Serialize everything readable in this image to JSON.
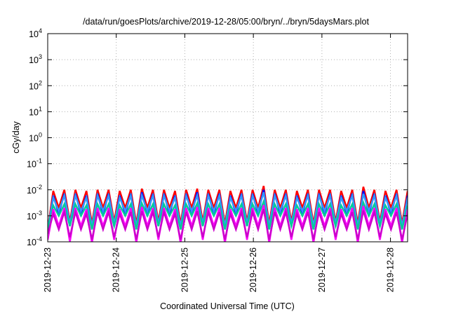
{
  "chart_data": {
    "type": "line",
    "title": "/data/run/goesPlots/archive/2019-12-28/05:00/bryn/../bryn/5daysMars.plot",
    "xlabel": "Coordinated Universal Time (UTC)",
    "ylabel": "cGy/day",
    "y_scale": "log",
    "ylim": [
      0.0001,
      10000
    ],
    "xlim": [
      "2019-12-23T00:00",
      "2019-12-28T06:00"
    ],
    "y_ticks": [
      {
        "base": "10",
        "exp": "-4"
      },
      {
        "base": "10",
        "exp": "-3"
      },
      {
        "base": "10",
        "exp": "-2"
      },
      {
        "base": "10",
        "exp": "-1"
      },
      {
        "base": "10",
        "exp": "0"
      },
      {
        "base": "10",
        "exp": "1"
      },
      {
        "base": "10",
        "exp": "2"
      },
      {
        "base": "10",
        "exp": "3"
      },
      {
        "base": "10",
        "exp": "4"
      }
    ],
    "x_ticks": [
      "2019-12-23",
      "2019-12-24",
      "2019-12-25",
      "2019-12-26",
      "2019-12-27",
      "2019-12-28"
    ],
    "grid": true,
    "series": [
      {
        "color": "#ff0000",
        "values": [
          0.0003,
          0.009,
          0.002,
          0.01,
          0.0006,
          0.01,
          0.002,
          0.009,
          0.0005,
          0.01,
          0.002,
          0.01,
          0.0006,
          0.009,
          0.002,
          0.01,
          0.0005,
          0.011,
          0.002,
          0.01,
          0.0006,
          0.01,
          0.002,
          0.009,
          0.0005,
          0.01,
          0.002,
          0.011,
          0.0006,
          0.01,
          0.002,
          0.01,
          0.0005,
          0.009,
          0.002,
          0.01,
          0.0006,
          0.01,
          0.002,
          0.014,
          0.0005,
          0.01,
          0.002,
          0.01,
          0.0006,
          0.009,
          0.002,
          0.01,
          0.0005,
          0.01,
          0.002,
          0.01,
          0.0006,
          0.009,
          0.002,
          0.01,
          0.0005,
          0.013,
          0.002,
          0.01,
          0.0006,
          0.009,
          0.002,
          0.01,
          0.0005,
          0.009
        ]
      },
      {
        "color": "#0000ff",
        "values": [
          0.0002,
          0.006,
          0.0012,
          0.007,
          0.0004,
          0.007,
          0.0012,
          0.006,
          0.0003,
          0.007,
          0.0012,
          0.007,
          0.0004,
          0.006,
          0.0012,
          0.007,
          0.0003,
          0.008,
          0.0012,
          0.007,
          0.0004,
          0.007,
          0.0012,
          0.006,
          0.0003,
          0.007,
          0.0012,
          0.008,
          0.0004,
          0.007,
          0.0012,
          0.007,
          0.0003,
          0.006,
          0.0012,
          0.007,
          0.0004,
          0.007,
          0.0012,
          0.01,
          0.0003,
          0.007,
          0.0012,
          0.007,
          0.0004,
          0.006,
          0.0012,
          0.007,
          0.0003,
          0.007,
          0.0012,
          0.007,
          0.0004,
          0.006,
          0.0012,
          0.007,
          0.0003,
          0.009,
          0.0012,
          0.007,
          0.0004,
          0.006,
          0.0012,
          0.007,
          0.0003,
          0.006
        ]
      },
      {
        "color": "#3399ff",
        "values": [
          0.0003,
          0.005,
          0.0015,
          0.006,
          0.0005,
          0.006,
          0.0015,
          0.005,
          0.0004,
          0.006,
          0.0015,
          0.006,
          0.0005,
          0.005,
          0.0015,
          0.006,
          0.0004,
          0.006,
          0.0015,
          0.006,
          0.0005,
          0.006,
          0.0015,
          0.005,
          0.0004,
          0.006,
          0.0015,
          0.006,
          0.0005,
          0.006,
          0.0015,
          0.006,
          0.0004,
          0.005,
          0.0015,
          0.006,
          0.0005,
          0.006,
          0.0015,
          0.008,
          0.0004,
          0.006,
          0.0015,
          0.006,
          0.0005,
          0.005,
          0.0015,
          0.006,
          0.0004,
          0.006,
          0.0015,
          0.006,
          0.0005,
          0.005,
          0.0015,
          0.006,
          0.0004,
          0.007,
          0.0015,
          0.006,
          0.0005,
          0.005,
          0.0015,
          0.006,
          0.0004,
          0.005
        ]
      },
      {
        "color": "#00cc99",
        "values": [
          0.0003,
          0.0025,
          0.001,
          0.0028,
          0.0004,
          0.0028,
          0.001,
          0.0025,
          0.0003,
          0.0028,
          0.001,
          0.0028,
          0.0004,
          0.0025,
          0.001,
          0.0028,
          0.0003,
          0.003,
          0.001,
          0.0028,
          0.0004,
          0.0028,
          0.001,
          0.0025,
          0.0003,
          0.0028,
          0.001,
          0.003,
          0.0004,
          0.0028,
          0.001,
          0.0028,
          0.0003,
          0.0025,
          0.001,
          0.0028,
          0.0004,
          0.0028,
          0.001,
          0.0035,
          0.0003,
          0.0028,
          0.001,
          0.0028,
          0.0004,
          0.0025,
          0.001,
          0.0028,
          0.0003,
          0.0028,
          0.001,
          0.0028,
          0.0004,
          0.0025,
          0.001,
          0.0028,
          0.0003,
          0.0032,
          0.001,
          0.0028,
          0.0004,
          0.0025,
          0.001,
          0.0028,
          0.0003,
          0.0025
        ]
      },
      {
        "color": "#ff00ff",
        "values": [
          0.00012,
          0.0018,
          0.0004,
          0.002,
          0.0001,
          0.002,
          0.0004,
          0.0018,
          9e-05,
          0.002,
          0.0004,
          0.002,
          0.00012,
          0.0018,
          0.0004,
          0.002,
          9e-05,
          0.0022,
          0.0004,
          0.002,
          0.00012,
          0.002,
          0.0004,
          0.0018,
          9e-05,
          0.002,
          0.0004,
          0.0022,
          0.00012,
          0.002,
          0.0004,
          0.002,
          9e-05,
          0.0018,
          0.0004,
          0.002,
          0.00012,
          0.002,
          0.0004,
          0.0026,
          9e-05,
          0.002,
          0.0004,
          0.002,
          0.00012,
          0.0018,
          0.0004,
          0.002,
          9e-05,
          0.002,
          0.0004,
          0.002,
          0.00012,
          0.0018,
          0.0004,
          0.002,
          9e-05,
          0.0024,
          0.0004,
          0.002,
          0.00012,
          0.0018,
          0.0004,
          0.002,
          9e-05,
          0.0018
        ]
      },
      {
        "color": "#cc00cc",
        "values": [
          0.0002,
          0.0012,
          0.0003,
          0.0014,
          0.00015,
          0.0014,
          0.0003,
          0.0012,
          0.00012,
          0.0014,
          0.0003,
          0.0014,
          0.00015,
          0.0012,
          0.0003,
          0.0014,
          0.00012,
          0.0015,
          0.0003,
          0.0014,
          0.00015,
          0.0014,
          0.0003,
          0.0012,
          0.00012,
          0.0014,
          0.0003,
          0.0015,
          0.00015,
          0.0014,
          0.0003,
          0.0014,
          0.00012,
          0.0012,
          0.0003,
          0.0014,
          0.00015,
          0.0014,
          0.0003,
          0.0018,
          0.00012,
          0.0014,
          0.0003,
          0.0014,
          0.00015,
          0.0012,
          0.0003,
          0.0014,
          0.00012,
          0.0014,
          0.0003,
          0.0014,
          0.00015,
          0.0012,
          0.0003,
          0.0014,
          0.00012,
          0.0016,
          0.0003,
          0.0014,
          0.00015,
          0.0012,
          0.0003,
          0.0014,
          0.00012,
          0.0012
        ]
      }
    ]
  }
}
